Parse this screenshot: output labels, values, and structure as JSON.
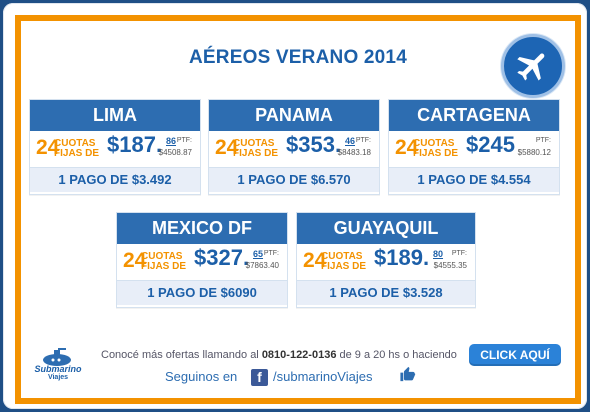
{
  "header": {
    "title": "AÉREOS VERANO 2014",
    "plane_icon": "airplane-icon"
  },
  "cards": [
    {
      "city": "LIMA",
      "quotas": "24",
      "label_top": "CUOTAS",
      "label_bottom": "FIJAS DE",
      "price": "$187.",
      "cents": "86",
      "ptf_label": "PTF:",
      "ptf_value": "$4508.87",
      "footer": "1 PAGO DE $3.492"
    },
    {
      "city": "PANAMA",
      "quotas": "24",
      "label_top": "CUOTAS",
      "label_bottom": "FIJAS DE",
      "price": "$353.",
      "cents": "46",
      "ptf_label": "PTF:",
      "ptf_value": "$8483.18",
      "footer": "1 PAGO DE $6.570"
    },
    {
      "city": "CARTAGENA",
      "quotas": "24",
      "label_top": "CUOTAS",
      "label_bottom": "FIJAS DE",
      "price": "$245",
      "cents": "",
      "ptf_label": "PTF:",
      "ptf_value": "$5880.12",
      "footer": "1 PAGO DE $4.554"
    },
    {
      "city": "MEXICO DF",
      "quotas": "24",
      "label_top": "CUOTAS",
      "label_bottom": "FIJAS DE",
      "price": "$327.",
      "cents": "65",
      "ptf_label": "PTF:",
      "ptf_value": "$7863.40",
      "footer": "1 PAGO DE $6090"
    },
    {
      "city": "GUAYAQUIL",
      "quotas": "24",
      "label_top": "CUOTAS",
      "label_bottom": "FIJAS DE",
      "price": "$189.",
      "cents": "80",
      "ptf_label": "PTF:",
      "ptf_value": "$4555.35",
      "footer": "1 PAGO DE $3.528"
    }
  ],
  "footer": {
    "brand": "Submarino",
    "brand_sub": "Viajes",
    "info_prefix": "Conocé más ofertas llamando al ",
    "phone": "0810-122-0136",
    "info_suffix": " de 9 a 20 hs o haciendo",
    "cta_label": "CLICK AQUÍ",
    "follow_label": "Seguinos en",
    "social_handle": "/submarinoViajes",
    "facebook_icon": "facebook-icon",
    "like_icon": "thumbs-up-icon"
  }
}
